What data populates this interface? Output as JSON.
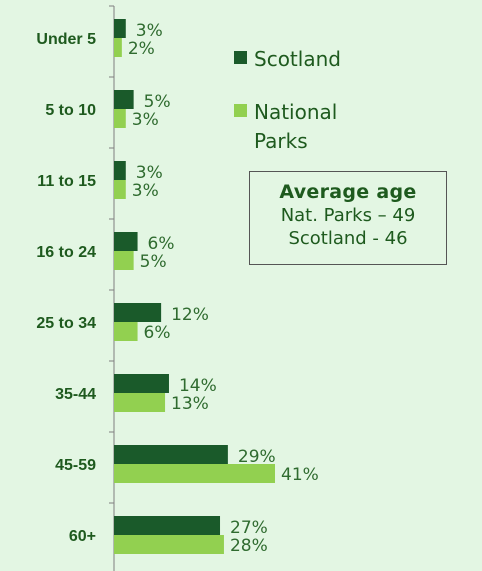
{
  "chart_data": {
    "type": "bar",
    "orientation": "horizontal",
    "categories": [
      "Under 5",
      "5 to 10",
      "11 to 15",
      "16 to 24",
      "25 to 34",
      "35-44",
      "45-59",
      "60+"
    ],
    "series": [
      {
        "name": "Scotland",
        "values": [
          3,
          5,
          3,
          6,
          12,
          14,
          29,
          27
        ],
        "labels": [
          "3%",
          "5%",
          "3%",
          "6%",
          "12%",
          "14%",
          "29%",
          "27%"
        ],
        "color": "#1a5a2a"
      },
      {
        "name": "National Parks",
        "values": [
          2,
          3,
          3,
          5,
          6,
          13,
          41,
          28
        ],
        "labels": [
          "2%",
          "3%",
          "3%",
          "5%",
          "6%",
          "13%",
          "41%",
          "28%"
        ],
        "color": "#92d050"
      }
    ],
    "legend": {
      "placement": "top-right",
      "entries": [
        "Scotland",
        "National Parks"
      ]
    },
    "grid": false
  },
  "annotation": {
    "title": "Average age",
    "lines": [
      "Nat. Parks – 49",
      "Scotland - 46"
    ]
  },
  "colors": {
    "background": "#e3f6e3",
    "text": "#1e5a1e",
    "scotland": "#1a5a2a",
    "national_parks": "#92d050"
  }
}
